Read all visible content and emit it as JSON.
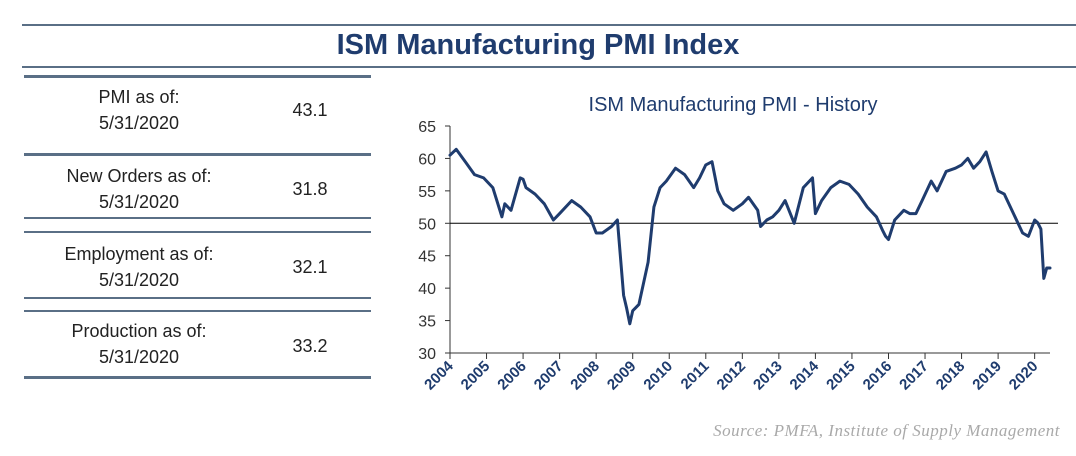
{
  "title": "ISM Manufacturing PMI Index",
  "stats": [
    {
      "label_line1": "PMI as of:",
      "label_line2": "5/31/2020",
      "value": "43.1"
    },
    {
      "label_line1": "New Orders as of:",
      "label_line2": "5/31/2020",
      "value": "31.8"
    },
    {
      "label_line1": "Employment as of:",
      "label_line2": "5/31/2020",
      "value": "32.1"
    },
    {
      "label_line1": "Production as of:",
      "label_line2": "5/31/2020",
      "value": "33.2"
    }
  ],
  "source": "Source:  PMFA,  Institute  of  Supply  Management",
  "colors": {
    "line": "#1f3c6e",
    "rule": "#5a6f86",
    "title": "#1f3c6e"
  },
  "chart_data": {
    "type": "line",
    "title": "ISM Manufacturing PMI - History",
    "xlabel": "",
    "ylabel": "",
    "ylim": [
      30,
      65
    ],
    "yticks": [
      "30",
      "35",
      "40",
      "45",
      "50",
      "55",
      "60",
      "65"
    ],
    "xticks": [
      "2004",
      "2005",
      "2006",
      "2007",
      "2008",
      "2009",
      "2010",
      "2011",
      "2012",
      "2013",
      "2014",
      "2015",
      "2016",
      "2017",
      "2018",
      "2019",
      "2020"
    ],
    "reference_line": 50,
    "grid": false,
    "series": [
      {
        "x": [
          2004.0,
          2004.17,
          2004.42,
          2004.67,
          2004.92,
          2005.17,
          2005.42,
          2005.5,
          2005.67,
          2005.92,
          2006.0,
          2006.08,
          2006.33,
          2006.58,
          2006.83,
          2007.0,
          2007.33,
          2007.58,
          2007.83,
          2008.0,
          2008.17,
          2008.42,
          2008.58,
          2008.75,
          2008.83,
          2008.92,
          2009.0,
          2009.17,
          2009.42,
          2009.58,
          2009.75,
          2009.92,
          2010.17,
          2010.42,
          2010.67,
          2010.83,
          2011.0,
          2011.17,
          2011.33,
          2011.5,
          2011.75,
          2012.0,
          2012.17,
          2012.42,
          2012.5,
          2012.67,
          2012.83,
          2013.0,
          2013.17,
          2013.42,
          2013.67,
          2013.92,
          2014.0,
          2014.17,
          2014.42,
          2014.67,
          2014.92,
          2015.17,
          2015.42,
          2015.67,
          2015.83,
          2015.92,
          2016.0,
          2016.17,
          2016.42,
          2016.58,
          2016.75,
          2016.92,
          2017.17,
          2017.33,
          2017.58,
          2017.83,
          2018.0,
          2018.17,
          2018.33,
          2018.5,
          2018.67,
          2018.83,
          2019.0,
          2019.17,
          2019.42,
          2019.67,
          2019.83,
          2020.0,
          2020.08,
          2020.17,
          2020.25,
          2020.33,
          2020.42
        ],
        "values": [
          60.5,
          61.4,
          59.5,
          57.5,
          57.0,
          55.5,
          51.0,
          53.0,
          52.0,
          57.0,
          56.8,
          55.5,
          54.5,
          53.0,
          50.5,
          51.5,
          53.5,
          52.5,
          51.0,
          48.5,
          48.5,
          49.5,
          50.5,
          38.9,
          37.0,
          34.5,
          36.5,
          37.5,
          44.0,
          52.5,
          55.5,
          56.5,
          58.5,
          57.5,
          55.5,
          57.0,
          59.0,
          59.5,
          55.0,
          53.0,
          52.0,
          53.0,
          54.0,
          52.0,
          49.5,
          50.5,
          51.0,
          52.0,
          53.5,
          50.0,
          55.5,
          57.0,
          51.5,
          53.5,
          55.5,
          56.5,
          56.0,
          54.5,
          52.5,
          51.0,
          49.0,
          48.0,
          47.5,
          50.5,
          52.0,
          51.5,
          51.5,
          53.5,
          56.5,
          55.0,
          58.0,
          58.5,
          59.0,
          60.0,
          58.5,
          59.5,
          61.0,
          58.0,
          55.0,
          54.5,
          51.5,
          48.5,
          48.0,
          50.5,
          50.1,
          49.1,
          41.5,
          43.1,
          43.1
        ]
      }
    ]
  }
}
